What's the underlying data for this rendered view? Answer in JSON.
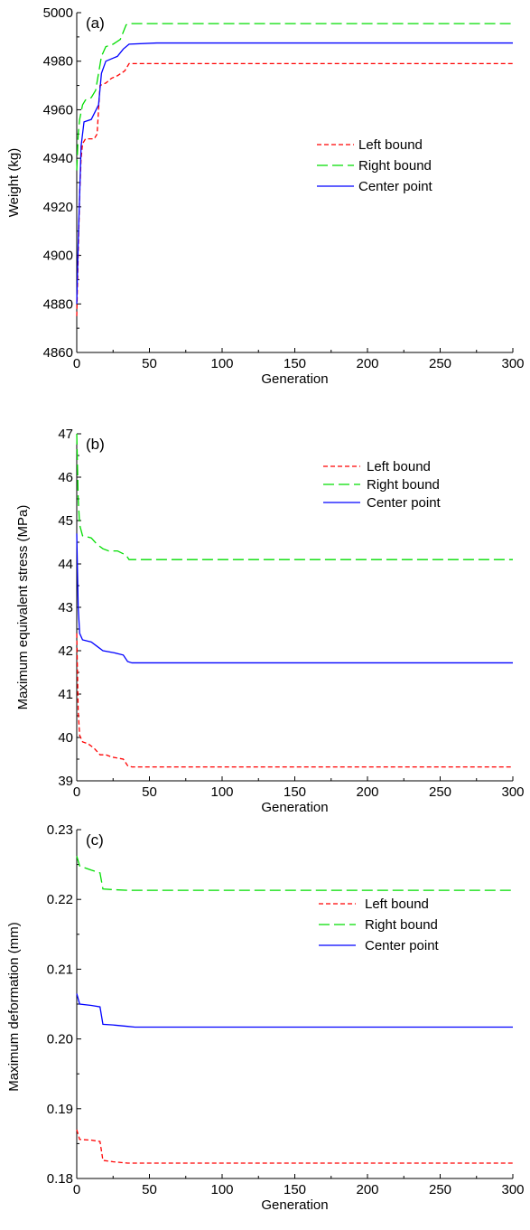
{
  "chart_data": [
    {
      "type": "line",
      "panel_label": "(a)",
      "xlabel": "Generation",
      "ylabel": "Weight (kg)",
      "xlim": [
        0,
        300
      ],
      "ylim": [
        4860,
        5000
      ],
      "xticks": [
        0,
        50,
        100,
        150,
        200,
        250,
        300
      ],
      "yticks": [
        4860,
        4880,
        4900,
        4920,
        4940,
        4960,
        4980,
        5000
      ],
      "grid": false,
      "legend": {
        "placement": "center-right"
      },
      "series": [
        {
          "name": "Left bound",
          "color": "#ff0000",
          "style": "dotted",
          "points": [
            [
              0,
              4875
            ],
            [
              1,
              4900
            ],
            [
              2,
              4925
            ],
            [
              3,
              4940
            ],
            [
              4,
              4946
            ],
            [
              6,
              4948
            ],
            [
              12,
              4948
            ],
            [
              14,
              4950
            ],
            [
              15,
              4960
            ],
            [
              16,
              4970
            ],
            [
              20,
              4971
            ],
            [
              24,
              4973
            ],
            [
              28,
              4974
            ],
            [
              33,
              4976
            ],
            [
              36,
              4979
            ],
            [
              40,
              4979
            ],
            [
              300,
              4979
            ]
          ]
        },
        {
          "name": "Right bound",
          "color": "#00dd00",
          "style": "dashed",
          "points": [
            [
              0,
              4935
            ],
            [
              1,
              4950
            ],
            [
              2,
              4956
            ],
            [
              4,
              4962
            ],
            [
              6,
              4964
            ],
            [
              10,
              4965
            ],
            [
              13,
              4968
            ],
            [
              15,
              4975
            ],
            [
              17,
              4982
            ],
            [
              20,
              4986
            ],
            [
              25,
              4987
            ],
            [
              30,
              4989
            ],
            [
              34,
              4995
            ],
            [
              38,
              4995.5
            ],
            [
              300,
              4995.5
            ]
          ]
        },
        {
          "name": "Center point",
          "color": "#0000ff",
          "style": "solid",
          "points": [
            [
              0,
              4880
            ],
            [
              1,
              4905
            ],
            [
              2,
              4925
            ],
            [
              3,
              4945
            ],
            [
              5,
              4955
            ],
            [
              10,
              4956
            ],
            [
              15,
              4962
            ],
            [
              17,
              4975
            ],
            [
              20,
              4980
            ],
            [
              28,
              4982
            ],
            [
              32,
              4985
            ],
            [
              36,
              4987
            ],
            [
              55,
              4987.5
            ],
            [
              300,
              4987.5
            ]
          ]
        }
      ]
    },
    {
      "type": "line",
      "panel_label": "(b)",
      "xlabel": "Generation",
      "ylabel": "Maximum equivalent stress (MPa)",
      "xlim": [
        0,
        300
      ],
      "ylim": [
        39,
        47
      ],
      "xticks": [
        0,
        50,
        100,
        150,
        200,
        250,
        300
      ],
      "yticks": [
        39,
        40,
        41,
        42,
        43,
        44,
        45,
        46,
        47
      ],
      "grid": false,
      "legend": {
        "placement": "top-right"
      },
      "series": [
        {
          "name": "Left bound",
          "color": "#ff0000",
          "style": "dotted",
          "points": [
            [
              0,
              42.4
            ],
            [
              1,
              40.6
            ],
            [
              2,
              40.05
            ],
            [
              4,
              39.9
            ],
            [
              8,
              39.85
            ],
            [
              12,
              39.75
            ],
            [
              16,
              39.6
            ],
            [
              20,
              39.6
            ],
            [
              24,
              39.55
            ],
            [
              32,
              39.5
            ],
            [
              35,
              39.35
            ],
            [
              38,
              39.32
            ],
            [
              300,
              39.32
            ]
          ]
        },
        {
          "name": "Right bound",
          "color": "#00dd00",
          "style": "dashed",
          "points": [
            [
              0,
              47.0
            ],
            [
              1,
              45.5
            ],
            [
              2,
              44.9
            ],
            [
              4,
              44.65
            ],
            [
              10,
              44.6
            ],
            [
              14,
              44.45
            ],
            [
              18,
              44.35
            ],
            [
              22,
              44.3
            ],
            [
              28,
              44.3
            ],
            [
              34,
              44.2
            ],
            [
              36,
              44.1
            ],
            [
              300,
              44.1
            ]
          ]
        },
        {
          "name": "Center point",
          "color": "#0000ff",
          "style": "solid",
          "points": [
            [
              0,
              44.7
            ],
            [
              1,
              43.0
            ],
            [
              2,
              42.4
            ],
            [
              4,
              42.25
            ],
            [
              10,
              42.2
            ],
            [
              14,
              42.1
            ],
            [
              18,
              42.0
            ],
            [
              26,
              41.95
            ],
            [
              32,
              41.9
            ],
            [
              35,
              41.75
            ],
            [
              38,
              41.72
            ],
            [
              300,
              41.72
            ]
          ]
        }
      ]
    },
    {
      "type": "line",
      "panel_label": "(c)",
      "xlabel": "Generation",
      "ylabel": "Maximum deformation (mm)",
      "xlim": [
        0,
        300
      ],
      "ylim": [
        0.18,
        0.23
      ],
      "xticks": [
        0,
        50,
        100,
        150,
        200,
        250,
        300
      ],
      "yticks": [
        0.18,
        0.19,
        0.2,
        0.21,
        0.22,
        0.23
      ],
      "grid": false,
      "legend": {
        "placement": "center-right"
      },
      "series": [
        {
          "name": "Left bound",
          "color": "#ff0000",
          "style": "dotted",
          "points": [
            [
              0,
              0.187
            ],
            [
              2,
              0.1856
            ],
            [
              10,
              0.1855
            ],
            [
              16,
              0.1853
            ],
            [
              18,
              0.1826
            ],
            [
              25,
              0.1824
            ],
            [
              35,
              0.1822
            ],
            [
              40,
              0.1822
            ],
            [
              300,
              0.1822
            ]
          ]
        },
        {
          "name": "Right bound",
          "color": "#00dd00",
          "style": "dashed",
          "points": [
            [
              0,
              0.2262
            ],
            [
              2,
              0.2248
            ],
            [
              10,
              0.2242
            ],
            [
              16,
              0.2238
            ],
            [
              18,
              0.2215
            ],
            [
              25,
              0.2214
            ],
            [
              35,
              0.2213
            ],
            [
              40,
              0.2213
            ],
            [
              300,
              0.2213
            ]
          ]
        },
        {
          "name": "Center point",
          "color": "#0000ff",
          "style": "solid",
          "points": [
            [
              0,
              0.2065
            ],
            [
              2,
              0.205
            ],
            [
              10,
              0.2048
            ],
            [
              16,
              0.2046
            ],
            [
              18,
              0.2021
            ],
            [
              25,
              0.202
            ],
            [
              35,
              0.2018
            ],
            [
              40,
              0.2017
            ],
            [
              300,
              0.2017
            ]
          ]
        }
      ]
    }
  ]
}
